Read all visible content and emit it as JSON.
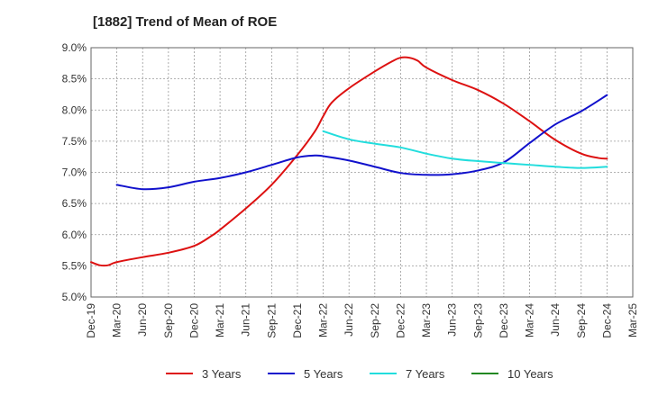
{
  "chart_data": {
    "type": "line",
    "title": "[1882]  Trend of Mean of ROE",
    "xlabel": "",
    "ylabel": "",
    "ylim": [
      5.0,
      9.0
    ],
    "y_ticks": [
      "5.0%",
      "5.5%",
      "6.0%",
      "6.5%",
      "7.0%",
      "7.5%",
      "8.0%",
      "8.5%",
      "9.0%"
    ],
    "x_ticks": [
      "Dec-19",
      "Mar-20",
      "Jun-20",
      "Sep-20",
      "Dec-20",
      "Mar-21",
      "Jun-21",
      "Sep-21",
      "Dec-21",
      "Mar-22",
      "Jun-22",
      "Sep-22",
      "Dec-22",
      "Mar-23",
      "Jun-23",
      "Sep-23",
      "Dec-23",
      "Mar-24",
      "Jun-24",
      "Sep-24",
      "Dec-24",
      "Mar-25"
    ],
    "grid": true,
    "legend_position": "bottom",
    "series": [
      {
        "name": "3 Years",
        "color": "#dd1111",
        "points": [
          [
            "Dec-19",
            5.56
          ],
          [
            "Jan-20",
            5.51
          ],
          [
            "Feb-20",
            5.51
          ],
          [
            "Mar-20",
            5.56
          ],
          [
            "Jun-20",
            5.64
          ],
          [
            "Sep-20",
            5.71
          ],
          [
            "Dec-20",
            5.82
          ],
          [
            "Feb-21",
            5.98
          ],
          [
            "Mar-21",
            6.08
          ],
          [
            "Jun-21",
            6.42
          ],
          [
            "Sep-21",
            6.8
          ],
          [
            "Dec-21",
            7.28
          ],
          [
            "Feb-22",
            7.65
          ],
          [
            "Mar-22",
            7.9
          ],
          [
            "Apr-22",
            8.12
          ],
          [
            "Jun-22",
            8.35
          ],
          [
            "Sep-22",
            8.62
          ],
          [
            "Nov-22",
            8.78
          ],
          [
            "Dec-22",
            8.84
          ],
          [
            "Jan-23",
            8.84
          ],
          [
            "Feb-23",
            8.79
          ],
          [
            "Mar-23",
            8.68
          ],
          [
            "Jun-23",
            8.48
          ],
          [
            "Sep-23",
            8.32
          ],
          [
            "Dec-23",
            8.1
          ],
          [
            "Mar-24",
            7.82
          ],
          [
            "Jun-24",
            7.52
          ],
          [
            "Sep-24",
            7.3
          ],
          [
            "Nov-24",
            7.23
          ],
          [
            "Dec-24",
            7.22
          ]
        ]
      },
      {
        "name": "5 Years",
        "color": "#1111cc",
        "points": [
          [
            "Mar-20",
            6.8
          ],
          [
            "Jun-20",
            6.73
          ],
          [
            "Sep-20",
            6.76
          ],
          [
            "Dec-20",
            6.85
          ],
          [
            "Mar-21",
            6.91
          ],
          [
            "Jun-21",
            7.0
          ],
          [
            "Sep-21",
            7.12
          ],
          [
            "Dec-21",
            7.24
          ],
          [
            "Feb-22",
            7.27
          ],
          [
            "Mar-22",
            7.26
          ],
          [
            "Jun-22",
            7.19
          ],
          [
            "Sep-22",
            7.09
          ],
          [
            "Dec-22",
            6.99
          ],
          [
            "Mar-23",
            6.96
          ],
          [
            "Jun-23",
            6.97
          ],
          [
            "Sep-23",
            7.03
          ],
          [
            "Dec-23",
            7.16
          ],
          [
            "Mar-24",
            7.47
          ],
          [
            "Jun-24",
            7.77
          ],
          [
            "Sep-24",
            7.98
          ],
          [
            "Dec-24",
            8.24
          ]
        ]
      },
      {
        "name": "7 Years",
        "color": "#22dddd",
        "points": [
          [
            "Mar-22",
            7.66
          ],
          [
            "Jun-22",
            7.53
          ],
          [
            "Sep-22",
            7.46
          ],
          [
            "Dec-22",
            7.4
          ],
          [
            "Mar-23",
            7.3
          ],
          [
            "Jun-23",
            7.22
          ],
          [
            "Sep-23",
            7.18
          ],
          [
            "Dec-23",
            7.15
          ],
          [
            "Mar-24",
            7.12
          ],
          [
            "Jun-24",
            7.09
          ],
          [
            "Sep-24",
            7.07
          ],
          [
            "Dec-24",
            7.09
          ]
        ]
      },
      {
        "name": "10 Years",
        "color": "#228822",
        "points": []
      }
    ]
  }
}
